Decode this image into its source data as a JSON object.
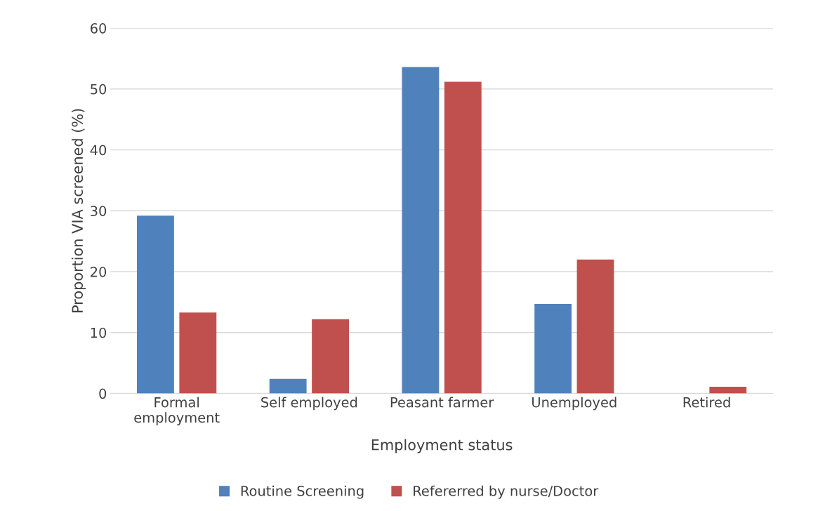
{
  "chart_data": {
    "type": "bar",
    "xlabel": "Employment status",
    "ylabel": "Proportion VIA screened (%)",
    "categories": [
      "Formal\nemployment",
      "Self employed",
      "Peasant farmer",
      "Unemployed",
      "Retired"
    ],
    "series": [
      {
        "name": "Routine Screening",
        "color": "#4f81bd",
        "values": [
          29.2,
          2.4,
          53.6,
          14.7,
          0
        ]
      },
      {
        "name": "Refererred by nurse/Doctor",
        "color": "#c0504d",
        "values": [
          13.3,
          12.2,
          51.2,
          22.0,
          1.1
        ]
      }
    ],
    "ylim": [
      0,
      60
    ],
    "yticks": [
      0,
      10,
      20,
      30,
      40,
      50,
      60
    ],
    "grid": "y",
    "legend": "bottom"
  }
}
